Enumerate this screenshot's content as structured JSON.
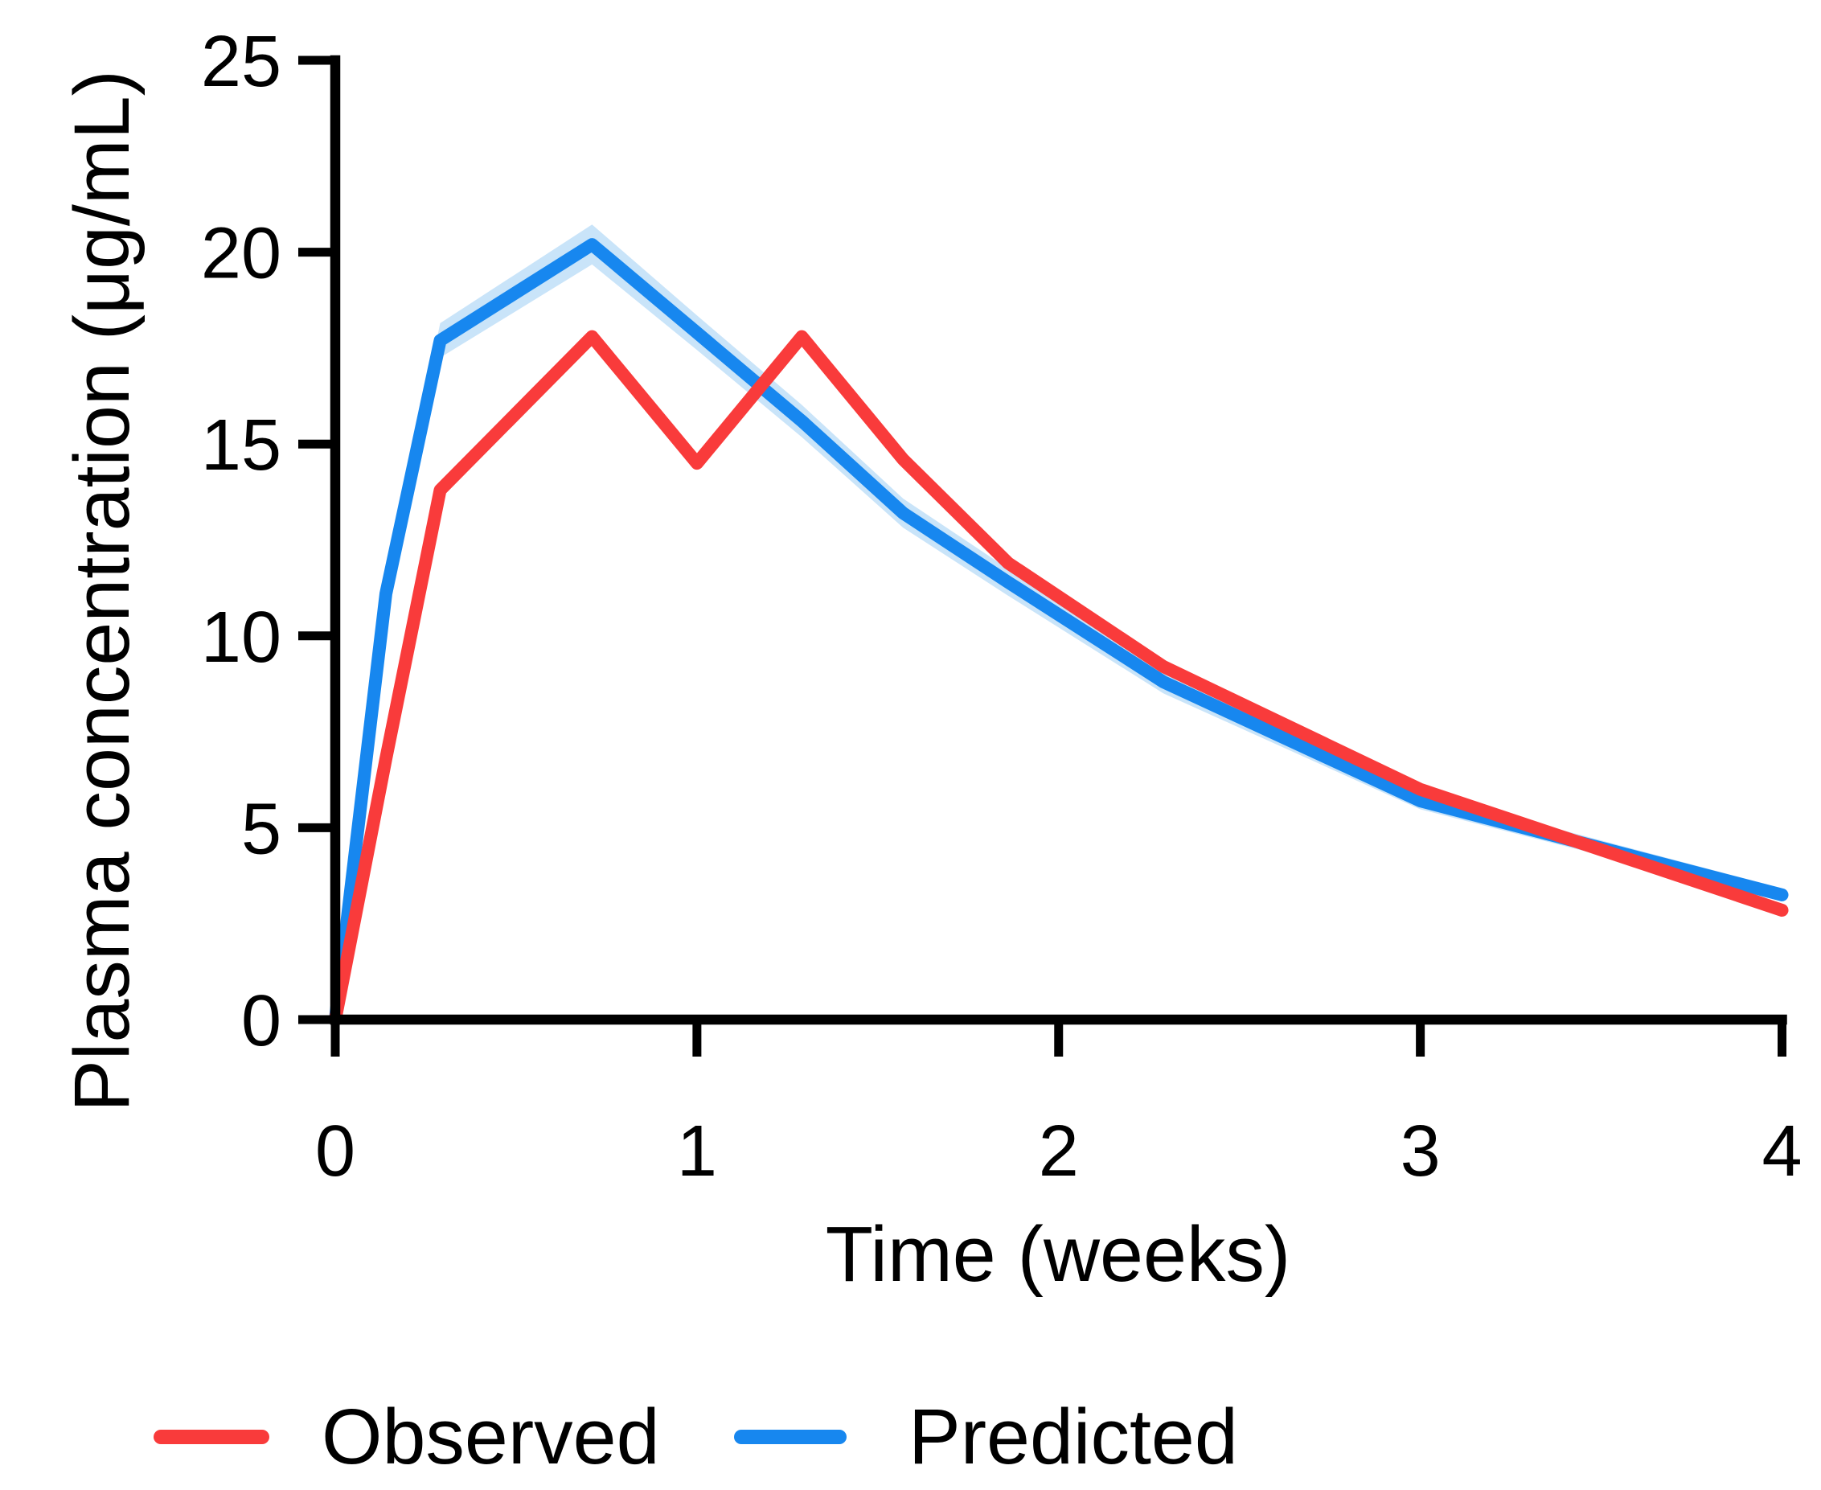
{
  "chart_data": {
    "type": "line",
    "title": "",
    "xlabel": "Time (weeks)",
    "ylabel": "Plasma concentration (μg/mL)",
    "xlim": [
      0,
      4
    ],
    "ylim": [
      0,
      25
    ],
    "x_ticks": [
      "0",
      "1",
      "2",
      "3",
      "4"
    ],
    "y_ticks": [
      "0",
      "5",
      "10",
      "15",
      "20",
      "25"
    ],
    "grid": false,
    "legend_position": "bottom",
    "axis_color": "#000000",
    "background_color": "#ffffff",
    "series": [
      {
        "name": "Observed",
        "color": "#F93B3B",
        "x": [
          0,
          0.14,
          0.29,
          0.71,
          1.0,
          1.29,
          1.57,
          1.86,
          2.29,
          3.0,
          4.0
        ],
        "y": [
          0,
          6.8,
          13.8,
          17.8,
          14.5,
          17.8,
          14.6,
          11.9,
          9.2,
          6.0,
          2.85
        ]
      },
      {
        "name": "Predicted",
        "color": "#1787EF",
        "x": [
          0,
          0.14,
          0.29,
          0.71,
          1.0,
          1.29,
          1.57,
          1.86,
          2.29,
          3.0,
          4.0
        ],
        "y": [
          0,
          11.1,
          17.7,
          20.2,
          17.9,
          15.6,
          13.2,
          11.4,
          8.8,
          5.7,
          3.25
        ],
        "ci_band": {
          "color": "#C9E4F9",
          "halfwidth": [
            0.06,
            0.25,
            0.45,
            0.52,
            0.45,
            0.42,
            0.38,
            0.35,
            0.3,
            0.22,
            0.17
          ]
        }
      }
    ],
    "legend": [
      {
        "label": "Observed",
        "color": "#F93B3B"
      },
      {
        "label": "Predicted",
        "color": "#1787EF"
      }
    ]
  }
}
